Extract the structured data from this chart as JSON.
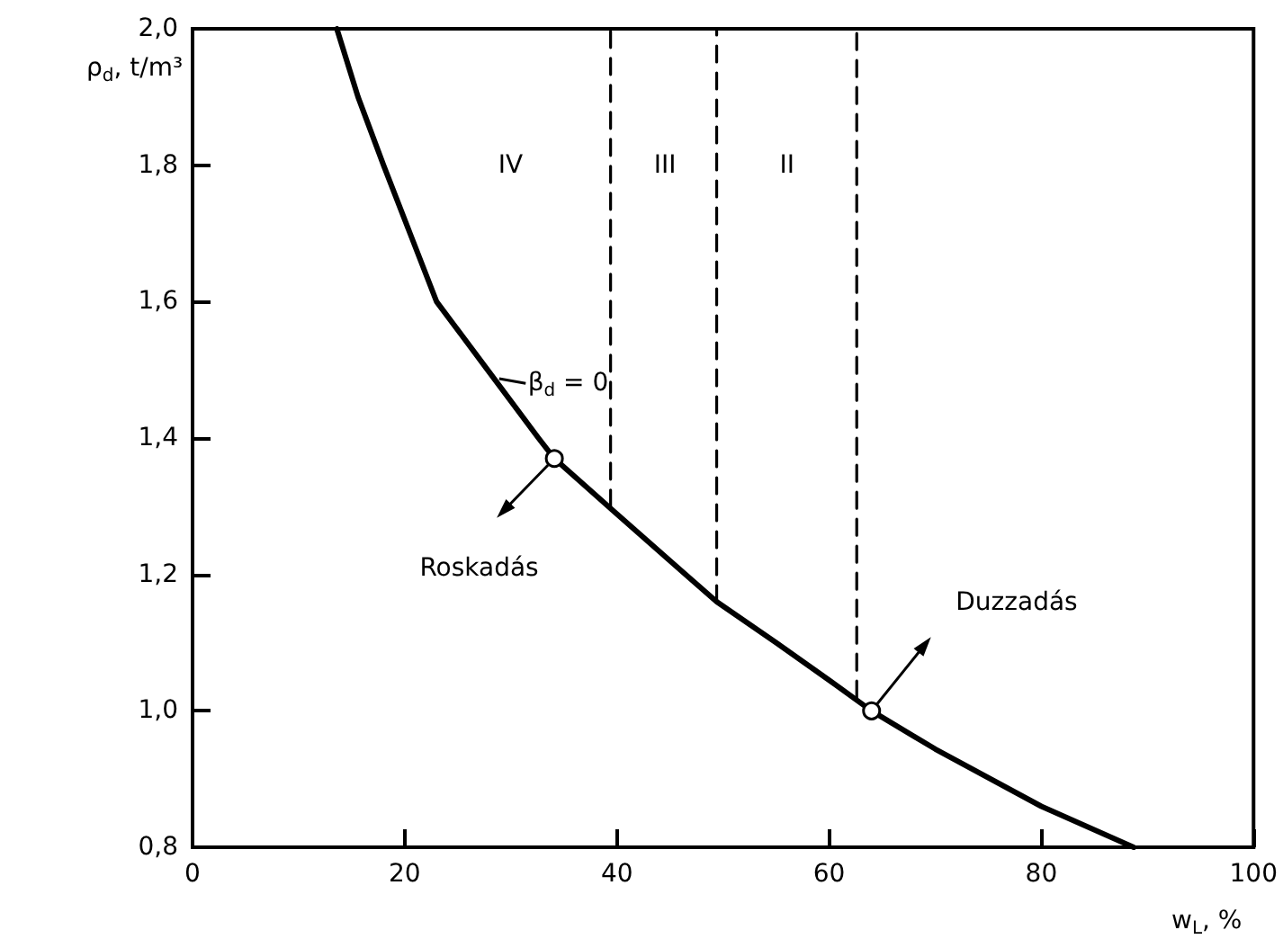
{
  "chart_data": {
    "type": "line",
    "xlabel": "w$_{L}$, %",
    "ylabel": "ρ$_{d}$, t/m³",
    "xlim": [
      0,
      100
    ],
    "ylim": [
      0.8,
      2.0
    ],
    "xticks": [
      0,
      20,
      40,
      60,
      80,
      100
    ],
    "yticks": [
      {
        "value": 0.8,
        "label": "0,8"
      },
      {
        "value": 1.0,
        "label": "1,0"
      },
      {
        "value": 1.2,
        "label": "1,2"
      },
      {
        "value": 1.4,
        "label": "1,4"
      },
      {
        "value": 1.6,
        "label": "1,6"
      },
      {
        "value": 1.8,
        "label": "1,8"
      },
      {
        "value": 2.0,
        "label": "2,0"
      }
    ],
    "grid": false,
    "series": [
      {
        "type": "line",
        "color": "#000000",
        "marker": "none",
        "line_style": "solid",
        "x": [
          13.6,
          15.6,
          18,
          20.5,
          23.0,
          27.8,
          32.6,
          34.1,
          39.9,
          45,
          49.4,
          55,
          60,
          64,
          70,
          80,
          88.7
        ],
        "values": [
          2.0,
          1.9,
          1.8,
          1.7,
          1.6,
          1.5,
          1.4,
          1.37,
          1.29,
          1.22,
          1.16,
          1.1,
          1.045,
          1.0,
          0.944,
          0.86,
          0.8
        ]
      },
      {
        "type": "scatter",
        "color": "#000000",
        "marker": "circle",
        "x": [
          34.1,
          64
        ],
        "values": [
          1.37,
          1.0
        ]
      },
      {
        "type": "line",
        "color": "#000000",
        "marker": "none",
        "line_style": "dashed",
        "x": [
          39.4,
          39.4
        ],
        "values": [
          1.3,
          2.0
        ]
      },
      {
        "type": "line",
        "color": "#000000",
        "marker": "none",
        "line_style": "dashed",
        "x": [
          49.4,
          49.4
        ],
        "values": [
          1.16,
          2.0
        ]
      },
      {
        "type": "line",
        "color": "#000000",
        "marker": "none",
        "line_style": "dashed",
        "x": [
          62.6,
          62.6
        ],
        "values": [
          1.02,
          2.0
        ]
      }
    ],
    "annotations": [
      "β$_{d}$ = 0",
      "IV",
      "III",
      "II",
      "Roskadás",
      "Duzzadás"
    ]
  }
}
